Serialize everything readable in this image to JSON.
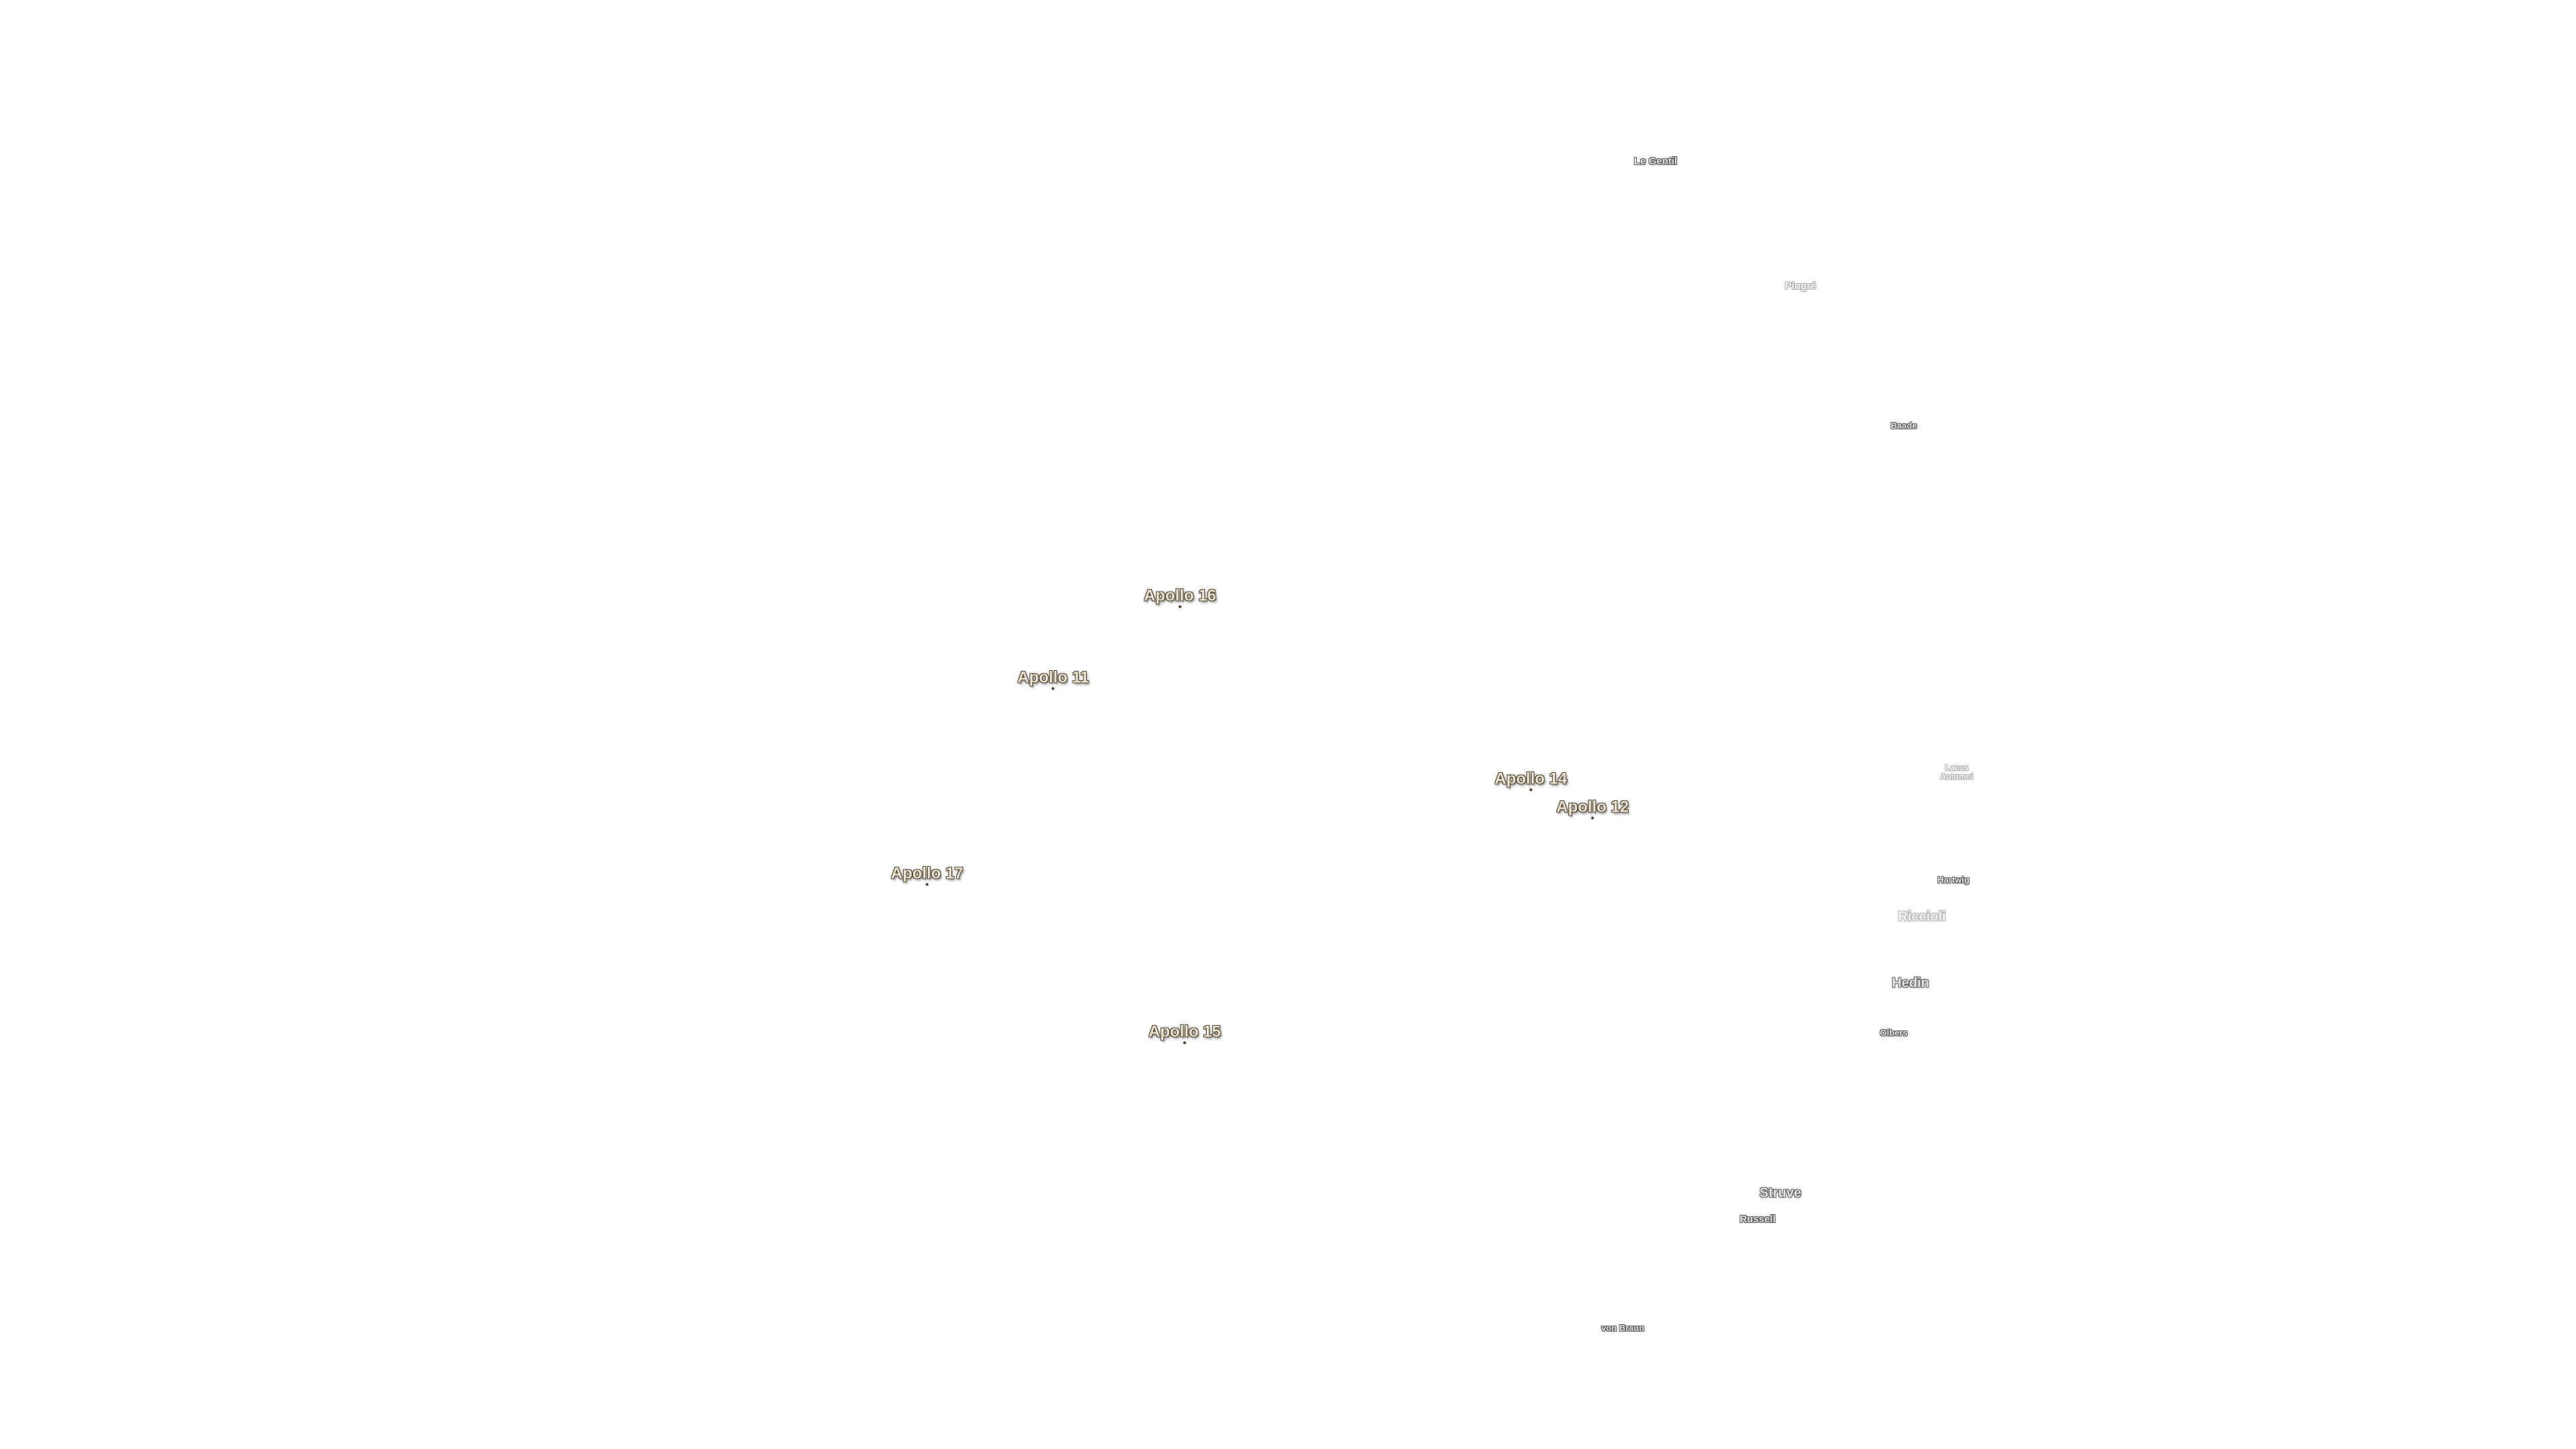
{
  "apollo_sites": [
    "Apollo 16",
    "Apollo 11",
    "Apollo 14",
    "Apollo 12",
    "Apollo 17",
    "Apollo 15"
  ],
  "features": [
    "Le Gentil",
    "Pingré",
    "Baade",
    "Lacus Autumni",
    "Hartwig",
    "Riccioli",
    "Hedin",
    "Olbers",
    "Struve",
    "Russell",
    "von Braun"
  ]
}
